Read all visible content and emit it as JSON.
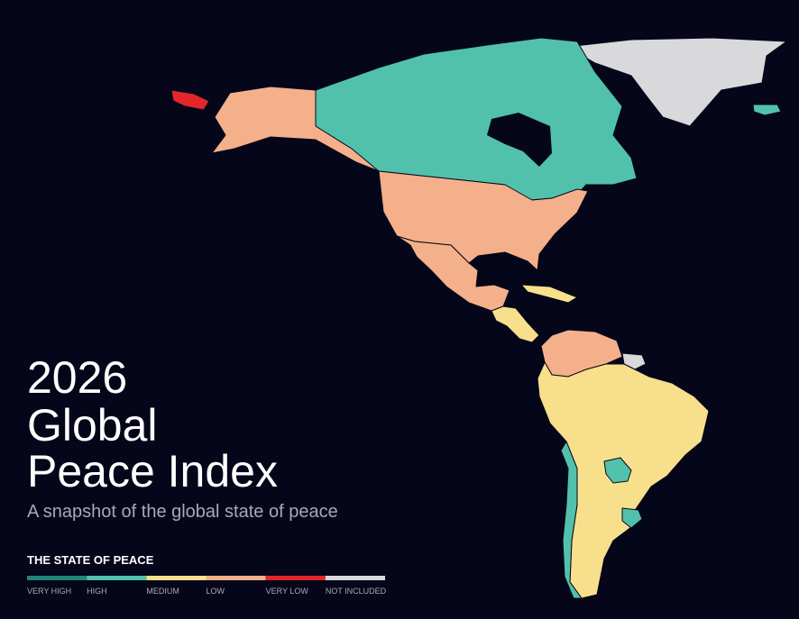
{
  "header": {
    "title_lines": [
      "2026",
      "Global",
      "Peace Index"
    ],
    "subtitle": "A snapshot of the global state of peace"
  },
  "legend": {
    "title": "THE STATE OF PEACE",
    "items": [
      {
        "label": "VERY HIGH",
        "color": "#23847a"
      },
      {
        "label": "HIGH",
        "color": "#52c1ab"
      },
      {
        "label": "MEDIUM",
        "color": "#f8df8b"
      },
      {
        "label": "LOW",
        "color": "#f4b08a"
      },
      {
        "label": "VERY LOW",
        "color": "#e4262a"
      },
      {
        "label": "NOT INCLUDED",
        "color": "#d9d9db"
      }
    ]
  }
}
